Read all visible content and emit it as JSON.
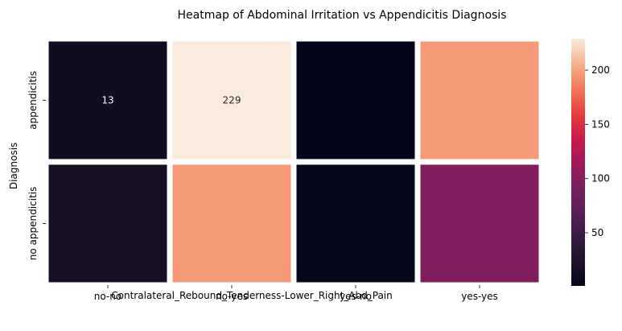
{
  "chart_data": {
    "type": "heatmap",
    "title": "Heatmap of Abdominal Irritation vs Appendicitis Diagnosis",
    "xlabel": "Contralateral_Rebound_Tenderness-Lower_Right_Abd_Pain",
    "ylabel": "Diagnosis",
    "x_categories": [
      "no-no",
      "no-yes",
      "yes-no",
      "yes-yes"
    ],
    "y_categories": [
      "appendicitis",
      "no appendicitis"
    ],
    "values": [
      [
        13,
        229,
        1,
        196
      ],
      [
        19,
        196,
        2,
        96
      ]
    ],
    "annotations": [
      {
        "row": 0,
        "col": 0,
        "text": "13"
      },
      {
        "row": 0,
        "col": 1,
        "text": "229"
      }
    ],
    "colorbar": {
      "colormap": "rocket",
      "vmin": 1,
      "vmax": 229,
      "ticks": [
        50,
        100,
        150,
        200
      ],
      "tick_labels": [
        "50",
        "100",
        "150",
        "200"
      ]
    },
    "grid": false,
    "cell_separator_color": "#ffffff"
  }
}
